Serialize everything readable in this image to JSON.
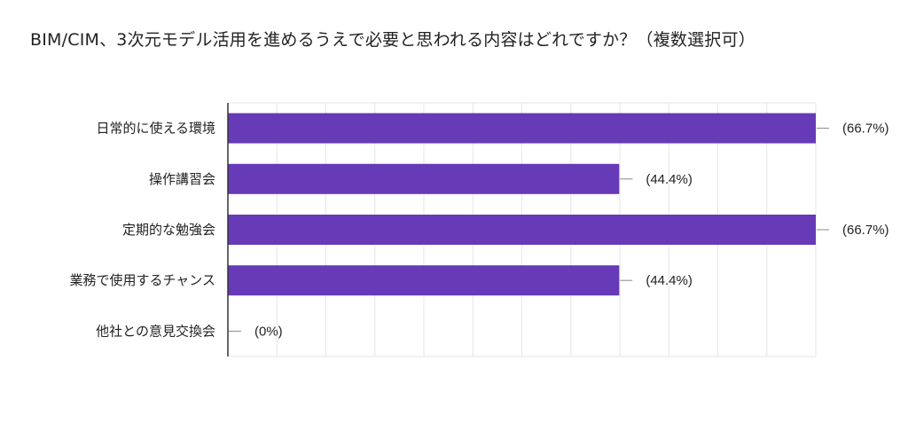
{
  "chart_data": {
    "type": "bar",
    "orientation": "horizontal",
    "title": "BIM/CIM、3次元モデル活用を進めるうえで必要と思われる内容はどれですか？（複数選択可）",
    "categories": [
      "日常的に使える環境",
      "操作講習会",
      "定期的な勉強会",
      "業務で使用するチャンス",
      "他社との意見交換会"
    ],
    "values": [
      66.7,
      44.4,
      66.7,
      44.4,
      0
    ],
    "data_labels": [
      "(66.7%)",
      "(44.4%)",
      "(66.7%)",
      "(44.4%)",
      "(0%)"
    ],
    "xlim": [
      0,
      66.7
    ],
    "grid": true,
    "legend": "none",
    "bar_color": "#673ab7"
  }
}
